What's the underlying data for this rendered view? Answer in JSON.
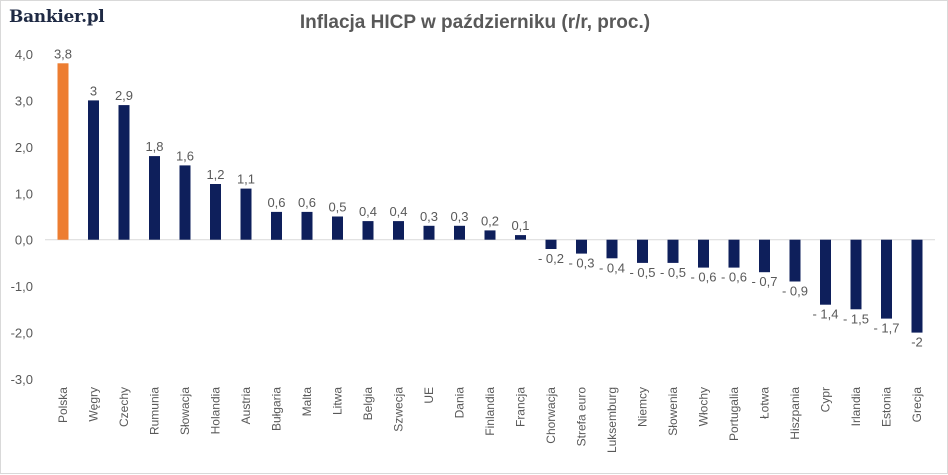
{
  "brand": {
    "name": "Bankier.pl"
  },
  "colors": {
    "highlight": "#ED7D31",
    "bar": "#0E1F5B",
    "axis_text": "#595959",
    "grid": "#D9D9D9"
  },
  "chart_data": {
    "type": "bar",
    "title": "Inflacja HICP w październiku (r/r, proc.)",
    "xlabel": "",
    "ylabel": "",
    "ylim": [
      -3.0,
      4.0
    ],
    "yticks": [
      4.0,
      3.0,
      2.0,
      1.0,
      0.0,
      -1.0,
      -2.0,
      -3.0
    ],
    "ytick_labels": [
      "4,0",
      "3,0",
      "2,0",
      "1,0",
      "0,0",
      "-1,0",
      "-2,0",
      "-3,0"
    ],
    "grid": false,
    "legend": "none",
    "categories": [
      "Polska",
      "Węgry",
      "Czechy",
      "Rumunia",
      "Słowacja",
      "Holandia",
      "Austria",
      "Bułgaria",
      "Malta",
      "Litwa",
      "Belgia",
      "Szwecja",
      "UE",
      "Dania",
      "Finlandia",
      "Francja",
      "Chorwacja",
      "Strefa euro",
      "Luksemburg",
      "Niemcy",
      "Słowenia",
      "Włochy",
      "Portugalia",
      "Łotwa",
      "Hiszpania",
      "Cypr",
      "Irlandia",
      "Estonia",
      "Grecja"
    ],
    "values": [
      3.8,
      3.0,
      2.9,
      1.8,
      1.6,
      1.2,
      1.1,
      0.6,
      0.6,
      0.5,
      0.4,
      0.4,
      0.3,
      0.3,
      0.2,
      0.1,
      -0.2,
      -0.3,
      -0.4,
      -0.5,
      -0.5,
      -0.6,
      -0.6,
      -0.7,
      -0.9,
      -1.4,
      -1.5,
      -1.7,
      -2.0
    ],
    "data_labels": [
      "3,8",
      "3",
      "2,9",
      "1,8",
      "1,6",
      "1,2",
      "1,1",
      "0,6",
      "0,6",
      "0,5",
      "0,4",
      "0,4",
      "0,3",
      "0,3",
      "0,2",
      "0,1",
      "- 0,2",
      "- 0,3",
      "- 0,4",
      "- 0,5",
      "- 0,5",
      "- 0,6",
      "- 0,6",
      "- 0,7",
      "- 0,9",
      "- 1,4",
      "- 1,5",
      "- 1,7",
      "-2"
    ],
    "highlight_index": 0
  }
}
